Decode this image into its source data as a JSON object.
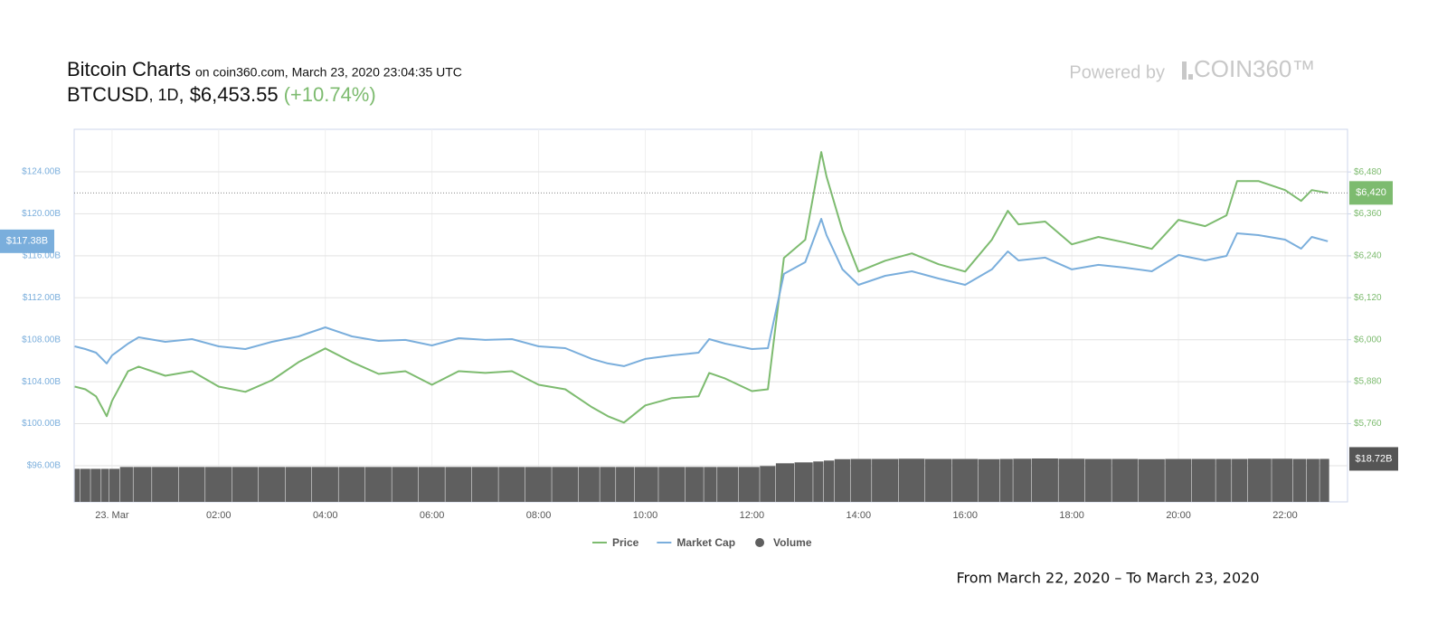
{
  "header": {
    "title": "Bitcoin Charts",
    "source": "on coin360.com, March 23, 2020 23:04:35 UTC",
    "pair": "BTCUSD",
    "interval": ", 1D",
    "price": ", $6,453.55",
    "change": "(+10.74%)",
    "powered_by": "Powered by",
    "brand": "COIN360™"
  },
  "footer": "From March 22, 2020 – To March 23, 2020",
  "chart_data": {
    "type": "line",
    "x": [
      -0.7,
      -0.5,
      -0.3,
      -0.1,
      0,
      0.3,
      0.5,
      1,
      1.5,
      2,
      2.5,
      3,
      3.5,
      4,
      4.5,
      5,
      5.5,
      6,
      6.5,
      7,
      7.5,
      8,
      8.5,
      9,
      9.3,
      9.6,
      10,
      10.5,
      11,
      11.2,
      11.5,
      12,
      12.3,
      12.6,
      13,
      13.3,
      13.4,
      13.7,
      14,
      14.5,
      15,
      15.5,
      16,
      16.5,
      16.8,
      17,
      17.5,
      18,
      18.5,
      19,
      19.5,
      20,
      20.5,
      20.9,
      21.1,
      21.5,
      22,
      22.3,
      22.5,
      22.8
    ],
    "xlim": [
      -0.71,
      23.17
    ],
    "xticks": [
      {
        "value": 0,
        "label": "23. Mar"
      },
      {
        "value": 2,
        "label": "02:00"
      },
      {
        "value": 4,
        "label": "04:00"
      },
      {
        "value": 6,
        "label": "06:00"
      },
      {
        "value": 8,
        "label": "08:00"
      },
      {
        "value": 10,
        "label": "10:00"
      },
      {
        "value": 12,
        "label": "12:00"
      },
      {
        "value": 14,
        "label": "14:00"
      },
      {
        "value": 16,
        "label": "16:00"
      },
      {
        "value": 18,
        "label": "18:00"
      },
      {
        "value": 20,
        "label": "20:00"
      },
      {
        "value": 22,
        "label": "22:00"
      }
    ],
    "ylim": [
      92.55,
      128.05
    ],
    "yticks": [
      {
        "value": 96,
        "label": "$96.00B"
      },
      {
        "value": 100,
        "label": "$100.00B"
      },
      {
        "value": 104,
        "label": "$104.00B"
      },
      {
        "value": 108,
        "label": "$108.00B"
      },
      {
        "value": 112,
        "label": "$112.00B"
      },
      {
        "value": 116,
        "label": "$116.00B"
      },
      {
        "value": 120,
        "label": "$120.00B"
      },
      {
        "value": 124,
        "label": "$124.00B"
      }
    ],
    "y2lim": [
      5536,
      6602
    ],
    "y2ticks": [
      {
        "value": 5760,
        "label": "$5,760"
      },
      {
        "value": 5880,
        "label": "$5,880"
      },
      {
        "value": 6000,
        "label": "$6,000"
      },
      {
        "value": 6120,
        "label": "$6,120"
      },
      {
        "value": 6240,
        "label": "$6,240"
      },
      {
        "value": 6360,
        "label": "$6,360"
      },
      {
        "value": 6480,
        "label": "$6,480"
      }
    ],
    "grid": true,
    "series": [
      {
        "name": "Price",
        "color": "#7dbb6f",
        "axis": "y2",
        "last_label": "$6,420",
        "values": [
          5866,
          5858,
          5838,
          5781,
          5825,
          5910,
          5923,
          5897,
          5910,
          5866,
          5851,
          5884,
          5936,
          5975,
          5936,
          5902,
          5910,
          5871,
          5910,
          5905,
          5910,
          5871,
          5858,
          5807,
          5781,
          5763,
          5812,
          5833,
          5838,
          5905,
          5889,
          5853,
          5858,
          6234,
          6286,
          6537,
          6467,
          6312,
          6195,
          6226,
          6247,
          6216,
          6195,
          6286,
          6369,
          6330,
          6338,
          6273,
          6294,
          6278,
          6260,
          6343,
          6325,
          6356,
          6454,
          6454,
          6428,
          6397,
          6428,
          6420
        ]
      },
      {
        "name": "Market Cap",
        "color": "#7aaedc",
        "axis": "y",
        "last_label": "$117.38B",
        "values": [
          107.37,
          107.11,
          106.77,
          105.74,
          106.51,
          107.63,
          108.23,
          107.8,
          108.06,
          107.37,
          107.11,
          107.8,
          108.32,
          109.18,
          108.32,
          107.89,
          107.98,
          107.46,
          108.15,
          107.98,
          108.06,
          107.37,
          107.2,
          106.17,
          105.74,
          105.48,
          106.17,
          106.51,
          106.77,
          108.06,
          107.63,
          107.11,
          107.2,
          114.27,
          115.39,
          119.52,
          117.97,
          114.7,
          113.23,
          114.09,
          114.52,
          113.83,
          113.23,
          114.7,
          116.42,
          115.56,
          115.82,
          114.7,
          115.13,
          114.87,
          114.52,
          116.07,
          115.56,
          115.99,
          118.14,
          117.97,
          117.54,
          116.68,
          117.8,
          117.38
        ]
      },
      {
        "name": "Volume",
        "color": "#5f5f5f",
        "type": "bar",
        "last_label": "$18.72B",
        "values": [
          14.4,
          14.4,
          14.4,
          14.4,
          14.4,
          15.2,
          15.2,
          15.2,
          15.2,
          15.2,
          15.2,
          15.2,
          15.2,
          15.2,
          15.2,
          15.2,
          15.2,
          15.2,
          15.2,
          15.2,
          15.2,
          15.2,
          15.2,
          15.2,
          15.2,
          15.2,
          15.2,
          15.2,
          15.2,
          15.2,
          15.2,
          15.2,
          15.6,
          16.8,
          17.2,
          17.6,
          18.0,
          18.6,
          18.7,
          18.7,
          18.8,
          18.7,
          18.7,
          18.6,
          18.7,
          18.8,
          18.9,
          18.8,
          18.7,
          18.7,
          18.6,
          18.7,
          18.7,
          18.7,
          18.7,
          18.8,
          18.8,
          18.7,
          18.7,
          18.72
        ]
      }
    ]
  }
}
